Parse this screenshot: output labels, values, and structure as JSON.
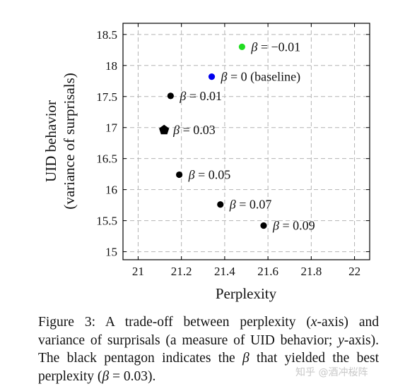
{
  "chart_data": {
    "type": "scatter",
    "title": "",
    "xlabel": "Perplexity",
    "ylabel_lines": [
      "UID behavior",
      "(variance of surprisals)"
    ],
    "xlim": [
      20.93,
      22.07
    ],
    "ylim": [
      14.87,
      18.68
    ],
    "xticks": [
      21,
      21.2,
      21.4,
      21.6,
      21.8,
      22
    ],
    "xtick_labels": [
      "21",
      "21.2",
      "21.4",
      "21.6",
      "21.8",
      "22"
    ],
    "yticks": [
      15,
      15.5,
      16,
      16.5,
      17,
      17.5,
      18,
      18.5
    ],
    "ytick_labels": [
      "15",
      "15.5",
      "16",
      "16.5",
      "17",
      "17.5",
      "18",
      "18.5"
    ],
    "grid": true,
    "points": [
      {
        "x": 21.48,
        "y": 18.3,
        "beta": "−0.01",
        "label": " = −0.01",
        "color": "#22dd22",
        "marker": "circle"
      },
      {
        "x": 21.34,
        "y": 17.82,
        "beta": "0",
        "label": " = 0 (baseline)",
        "color": "#0000ee",
        "marker": "circle"
      },
      {
        "x": 21.15,
        "y": 17.51,
        "beta": "0.01",
        "label": " = 0.01",
        "color": "#000000",
        "marker": "circle"
      },
      {
        "x": 21.12,
        "y": 16.96,
        "beta": "0.03",
        "label": " = 0.03",
        "color": "#000000",
        "marker": "pentagon"
      },
      {
        "x": 21.19,
        "y": 16.24,
        "beta": "0.05",
        "label": " = 0.05",
        "color": "#000000",
        "marker": "circle"
      },
      {
        "x": 21.38,
        "y": 15.76,
        "beta": "0.07",
        "label": " = 0.07",
        "color": "#000000",
        "marker": "circle"
      },
      {
        "x": 21.58,
        "y": 15.42,
        "beta": "0.09",
        "label": " = 0.09",
        "color": "#000000",
        "marker": "circle"
      }
    ]
  },
  "caption": {
    "p1": "Figure 3:  A trade-off between perplexity (",
    "x": "x",
    "p2": "-axis) and variance of surprisals (a measure of UID behavior; ",
    "y": "y",
    "p3": "-axis).  The black pentagon indicates the ",
    "beta": "β",
    "p4": " that yielded the best perplexity (",
    "beta2": "β",
    "p5": " = 0.03)."
  },
  "watermark": "知乎 @酒冲桜阵"
}
